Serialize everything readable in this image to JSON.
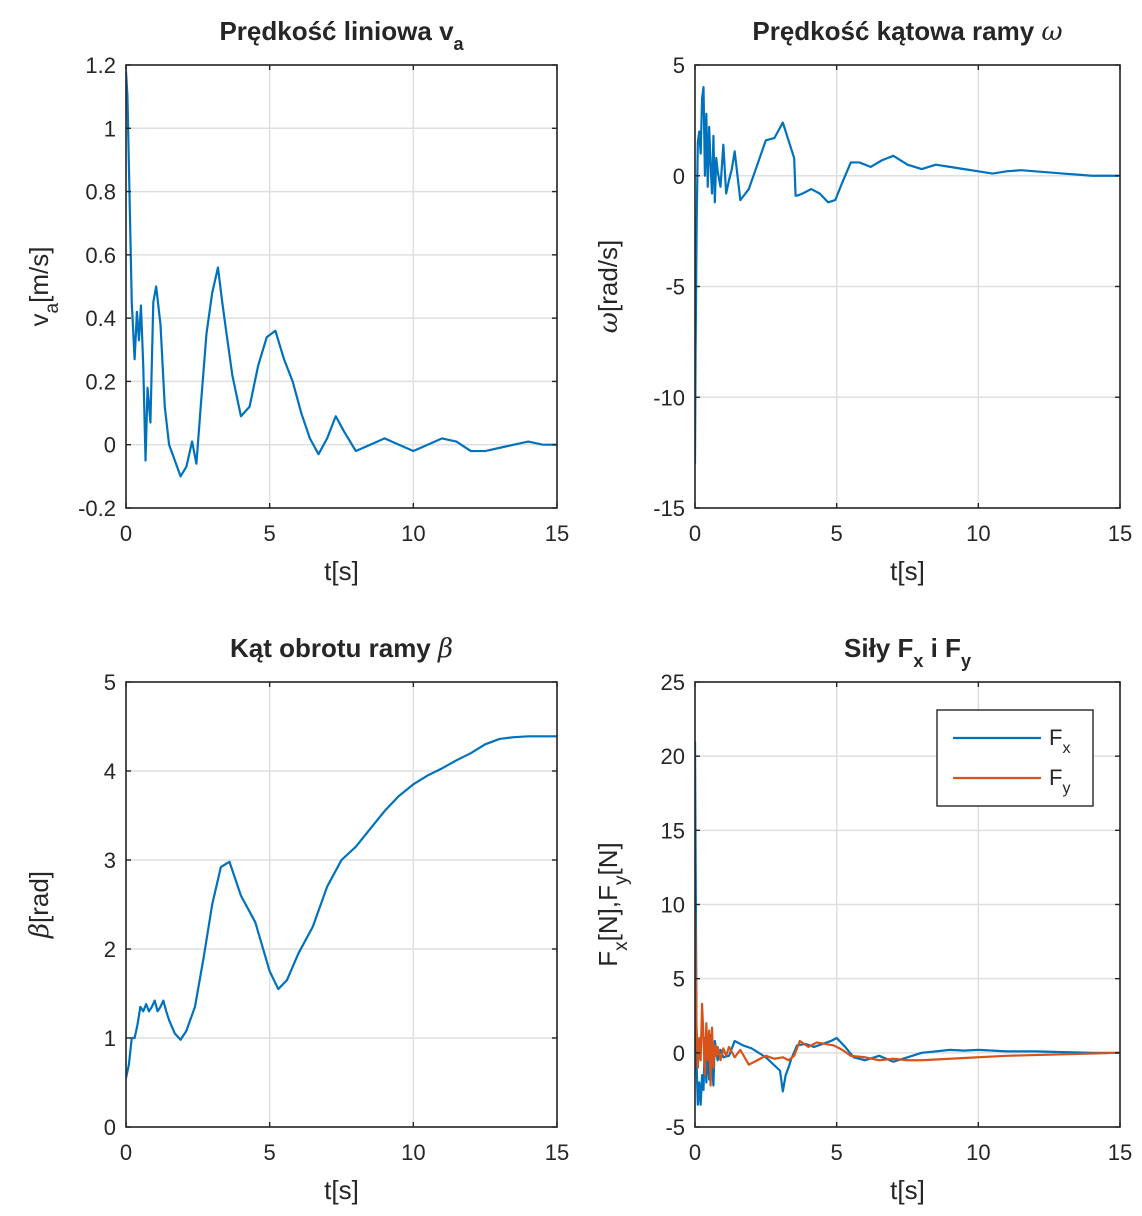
{
  "chart_data": [
    {
      "type": "line",
      "title": {
        "main": "Prędkość liniowa v",
        "sub": "a"
      },
      "xlabel": "t[s]",
      "ylabel": {
        "main": "v",
        "sub": "a",
        "rest": "[m/s]"
      },
      "xlim": [
        0,
        15
      ],
      "ylim": [
        -0.2,
        1.2
      ],
      "xticks": [
        "0",
        "5",
        "10",
        "15"
      ],
      "yticks": [
        "-0.2",
        "0",
        "0.2",
        "0.4",
        "0.6",
        "0.8",
        "1",
        "1.2"
      ],
      "grid": true,
      "series": [
        {
          "color": "#0072BD",
          "x": [
            0,
            0.05,
            0.12,
            0.2,
            0.3,
            0.38,
            0.45,
            0.52,
            0.6,
            0.68,
            0.75,
            0.85,
            0.95,
            1.05,
            1.2,
            1.35,
            1.5,
            1.7,
            1.9,
            2.1,
            2.3,
            2.45,
            2.6,
            2.8,
            3.0,
            3.2,
            3.35,
            3.5,
            3.7,
            4.0,
            4.3,
            4.6,
            4.9,
            5.2,
            5.5,
            5.8,
            6.1,
            6.4,
            6.7,
            7.0,
            7.3,
            7.6,
            8.0,
            8.5,
            9.0,
            9.5,
            10.0,
            10.5,
            11.0,
            11.5,
            12.0,
            12.5,
            13.0,
            13.5,
            14.0,
            14.5,
            15.0
          ],
          "y": [
            1.18,
            1.1,
            0.8,
            0.45,
            0.27,
            0.42,
            0.33,
            0.44,
            0.25,
            -0.05,
            0.18,
            0.07,
            0.45,
            0.5,
            0.38,
            0.12,
            0.0,
            -0.05,
            -0.1,
            -0.07,
            0.01,
            -0.06,
            0.12,
            0.35,
            0.48,
            0.56,
            0.45,
            0.35,
            0.22,
            0.09,
            0.12,
            0.25,
            0.34,
            0.36,
            0.27,
            0.2,
            0.1,
            0.02,
            -0.03,
            0.02,
            0.09,
            0.04,
            -0.02,
            0.0,
            0.02,
            0.0,
            -0.02,
            0.0,
            0.02,
            0.01,
            -0.02,
            -0.02,
            -0.01,
            0.0,
            0.01,
            0.0,
            0.0
          ]
        }
      ]
    },
    {
      "type": "line",
      "title": {
        "main": "Prędkość kątowa ramy ",
        "greek": "ω"
      },
      "xlabel": "t[s]",
      "ylabel": {
        "greek": "ω",
        "rest": "[rad/s]"
      },
      "xlim": [
        0,
        15
      ],
      "ylim": [
        -15,
        5
      ],
      "xticks": [
        "0",
        "5",
        "10",
        "15"
      ],
      "yticks": [
        "-15",
        "-10",
        "-5",
        "0",
        "5"
      ],
      "grid": true,
      "series": [
        {
          "color": "#0072BD",
          "x": [
            0,
            0.02,
            0.06,
            0.1,
            0.15,
            0.2,
            0.25,
            0.3,
            0.35,
            0.4,
            0.45,
            0.5,
            0.55,
            0.6,
            0.65,
            0.7,
            0.75,
            0.8,
            0.9,
            1.0,
            1.1,
            1.2,
            1.3,
            1.4,
            1.6,
            1.9,
            2.2,
            2.5,
            2.8,
            3.1,
            3.3,
            3.5,
            3.55,
            3.6,
            3.8,
            4.1,
            4.4,
            4.7,
            4.95,
            5.2,
            5.5,
            5.8,
            6.2,
            6.6,
            7.0,
            7.5,
            8.0,
            8.5,
            9.0,
            9.5,
            10.0,
            10.5,
            11.0,
            11.5,
            12.0,
            12.5,
            13.0,
            13.5,
            14.0,
            14.5,
            15.0
          ],
          "y": [
            -13,
            -8,
            -2,
            1.5,
            2.0,
            1.0,
            3.5,
            4.0,
            0.0,
            2.8,
            -0.5,
            2.2,
            0.5,
            -0.8,
            1.8,
            -1.2,
            0.8,
            0.2,
            -0.5,
            1.4,
            -0.8,
            -0.2,
            0.3,
            1.1,
            -1.1,
            -0.6,
            0.5,
            1.6,
            1.7,
            2.4,
            1.6,
            0.8,
            -0.9,
            -0.9,
            -0.8,
            -0.6,
            -0.8,
            -1.2,
            -1.1,
            -0.3,
            0.6,
            0.6,
            0.4,
            0.7,
            0.9,
            0.5,
            0.3,
            0.5,
            0.4,
            0.3,
            0.2,
            0.1,
            0.2,
            0.25,
            0.2,
            0.15,
            0.1,
            0.05,
            0.0,
            0.0,
            0.0
          ]
        }
      ]
    },
    {
      "type": "line",
      "title": {
        "main": "Kąt obrotu ramy ",
        "greek": "β"
      },
      "xlabel": "t[s]",
      "ylabel": {
        "greek": "β",
        "rest": "[rad]"
      },
      "xlim": [
        0,
        15
      ],
      "ylim": [
        0,
        5
      ],
      "xticks": [
        "0",
        "5",
        "10",
        "15"
      ],
      "yticks": [
        "0",
        "1",
        "2",
        "3",
        "4",
        "5"
      ],
      "grid": true,
      "series": [
        {
          "color": "#0072BD",
          "x": [
            0,
            0.1,
            0.2,
            0.3,
            0.4,
            0.5,
            0.6,
            0.7,
            0.8,
            0.9,
            1.0,
            1.1,
            1.2,
            1.3,
            1.4,
            1.5,
            1.7,
            1.9,
            2.1,
            2.4,
            2.7,
            3.0,
            3.3,
            3.6,
            4.0,
            4.5,
            5.0,
            5.3,
            5.6,
            6.0,
            6.5,
            7.0,
            7.5,
            8.0,
            8.5,
            9.0,
            9.5,
            10.0,
            10.5,
            11.0,
            11.5,
            12.0,
            12.5,
            13.0,
            13.5,
            14.0,
            14.5,
            15.0
          ],
          "y": [
            0.55,
            0.7,
            1.0,
            1.0,
            1.15,
            1.35,
            1.3,
            1.38,
            1.3,
            1.35,
            1.42,
            1.3,
            1.35,
            1.42,
            1.3,
            1.2,
            1.05,
            0.98,
            1.08,
            1.35,
            1.9,
            2.5,
            2.92,
            2.98,
            2.6,
            2.3,
            1.75,
            1.55,
            1.65,
            1.95,
            2.25,
            2.7,
            3.0,
            3.15,
            3.35,
            3.55,
            3.72,
            3.85,
            3.95,
            4.03,
            4.12,
            4.2,
            4.3,
            4.36,
            4.38,
            4.39,
            4.39,
            4.39
          ]
        }
      ]
    },
    {
      "type": "line",
      "title": {
        "main": "Siły F",
        "sub1": "x",
        "mid": " i F",
        "sub2": "y"
      },
      "xlabel": "t[s]",
      "ylabel": {
        "a": "F",
        "sa": "x",
        "b": "[N],F",
        "sb": "y",
        "c": "[N]"
      },
      "xlim": [
        0,
        15
      ],
      "ylim": [
        -5,
        25
      ],
      "xticks": [
        "0",
        "5",
        "10",
        "15"
      ],
      "yticks": [
        "-5",
        "0",
        "5",
        "10",
        "15",
        "20",
        "25"
      ],
      "grid": true,
      "legend": {
        "placement": "top-right",
        "entries": [
          {
            "main": "F",
            "sub": "x"
          },
          {
            "main": "F",
            "sub": "y"
          }
        ]
      },
      "series": [
        {
          "color": "#0072BD",
          "x": [
            0,
            0.03,
            0.06,
            0.1,
            0.15,
            0.2,
            0.25,
            0.3,
            0.35,
            0.4,
            0.45,
            0.5,
            0.55,
            0.6,
            0.65,
            0.7,
            0.8,
            0.9,
            1.0,
            1.2,
            1.4,
            1.7,
            2.0,
            2.5,
            3.0,
            3.1,
            3.2,
            3.3,
            3.4,
            3.6,
            3.9,
            4.2,
            4.5,
            4.8,
            5.0,
            5.3,
            5.6,
            6.0,
            6.5,
            7.0,
            7.5,
            8.0,
            8.5,
            9.0,
            9.5,
            10.0,
            11.0,
            12.0,
            13.0,
            14.0,
            15.0
          ],
          "y": [
            21,
            10,
            -1,
            -3.5,
            -2,
            -3.5,
            -1.5,
            -2.5,
            1,
            -2,
            0.5,
            -1.8,
            1.2,
            -1,
            -2.2,
            0.8,
            -0.5,
            0.2,
            -0.3,
            -0.2,
            0.8,
            0.5,
            0.3,
            -0.3,
            -1.2,
            -2.6,
            -1.5,
            -1.0,
            -0.4,
            0.5,
            0.6,
            0.4,
            0.6,
            0.8,
            1.0,
            0.4,
            -0.3,
            -0.5,
            -0.2,
            -0.6,
            -0.3,
            0.0,
            0.1,
            0.2,
            0.15,
            0.2,
            0.1,
            0.1,
            0.05,
            0.0,
            0.0
          ]
        },
        {
          "color": "#D95319",
          "x": [
            0,
            0.05,
            0.1,
            0.15,
            0.2,
            0.25,
            0.3,
            0.35,
            0.4,
            0.45,
            0.5,
            0.55,
            0.6,
            0.65,
            0.7,
            0.75,
            0.8,
            0.9,
            1.0,
            1.1,
            1.2,
            1.4,
            1.6,
            1.9,
            2.2,
            2.5,
            2.8,
            3.1,
            3.3,
            3.5,
            3.7,
            4.0,
            4.3,
            4.6,
            4.9,
            5.2,
            5.5,
            6.0,
            6.5,
            7.0,
            7.5,
            8.0,
            9.0,
            10.0,
            11.0,
            12.0,
            13.0,
            14.0,
            15.0
          ],
          "y": [
            9.5,
            2,
            -1,
            1,
            -0.5,
            3.3,
            1.0,
            -1.5,
            2.0,
            -0.5,
            1.5,
            -2.2,
            1.7,
            -1,
            0.5,
            -0.2,
            0.4,
            -0.5,
            0.3,
            -0.2,
            0.4,
            -0.3,
            0.2,
            -0.8,
            -0.5,
            -0.2,
            -0.4,
            -0.3,
            -0.5,
            -0.2,
            0.8,
            0.4,
            0.7,
            0.6,
            0.5,
            0.2,
            -0.2,
            -0.3,
            -0.5,
            -0.4,
            -0.5,
            -0.5,
            -0.4,
            -0.3,
            -0.2,
            -0.15,
            -0.1,
            -0.05,
            0.0
          ]
        }
      ]
    }
  ]
}
